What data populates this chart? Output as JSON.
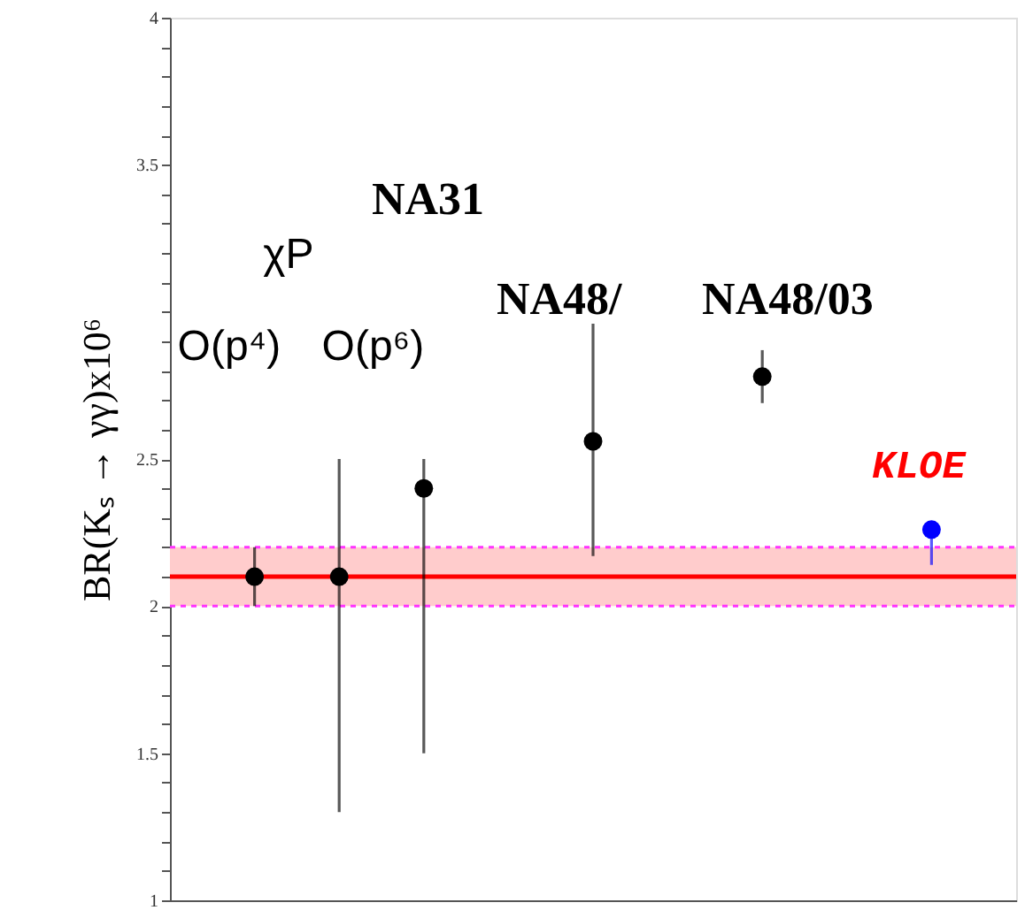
{
  "chart_data": {
    "type": "scatter",
    "ylabel": "BR(Kₛ → γγ)x10⁶",
    "categories": [
      null,
      null,
      null,
      null,
      null,
      null,
      null,
      null,
      null
    ],
    "values": [
      2.1,
      2.1,
      2.4,
      null,
      2.56,
      null,
      2.78,
      null,
      2.26
    ],
    "errors": [
      [
        2.0,
        2.2
      ],
      [
        1.3,
        2.5
      ],
      [
        1.5,
        2.5
      ],
      null,
      [
        2.17,
        2.96
      ],
      null,
      [
        2.69,
        2.87
      ],
      null,
      [
        2.14,
        2.26
      ]
    ],
    "colors": [
      "#000000",
      "#000000",
      "#000000",
      "#000000",
      "#000000",
      "#000000",
      "#000000",
      "#000000",
      "#0000ff"
    ],
    "marker": "circle",
    "tick_labels": "y",
    "ylim": [
      1,
      4
    ],
    "yticks": [
      1,
      {
        "value": 1.1,
        "label": null
      },
      {
        "value": 1.2,
        "label": null
      },
      {
        "value": 1.3,
        "label": null
      },
      {
        "value": 1.4,
        "label": null
      },
      1.5,
      {
        "value": 1.6,
        "label": null
      },
      {
        "value": 1.7,
        "label": null
      },
      {
        "value": 1.8,
        "label": null
      },
      {
        "value": 1.9,
        "label": null
      },
      2,
      {
        "value": 2.1,
        "label": null
      },
      {
        "value": 2.2,
        "label": null
      },
      {
        "value": 2.3,
        "label": null
      },
      {
        "value": 2.4,
        "label": null
      },
      2.5,
      {
        "value": 2.6,
        "label": null
      },
      {
        "value": 2.7,
        "label": null
      },
      {
        "value": 2.8,
        "label": null
      },
      {
        "value": 2.9,
        "label": null
      },
      {
        "value": 3,
        "label": null
      },
      {
        "value": 3.1,
        "label": null
      },
      {
        "value": 3.2,
        "label": null
      },
      {
        "value": 3.3,
        "label": null
      },
      {
        "value": 3.4,
        "label": null
      },
      3.5,
      {
        "value": 3.6,
        "label": null
      },
      {
        "value": 3.7,
        "label": null
      },
      {
        "value": 3.8,
        "label": null
      },
      {
        "value": 3.9,
        "label": null
      },
      4
    ],
    "ref_lines": [
      {
        "axis": "y",
        "value": 2.1,
        "color": "#ff0000"
      }
    ],
    "bands": [
      {
        "axis": "y",
        "from": 2.0,
        "to": 2.2,
        "color": "#ffcccc"
      }
    ],
    "annotations": [
      "χP",
      "O(p⁴)",
      "O(p⁶)",
      "NA31",
      "NA48/",
      "NA48/03",
      "KLOE"
    ]
  }
}
